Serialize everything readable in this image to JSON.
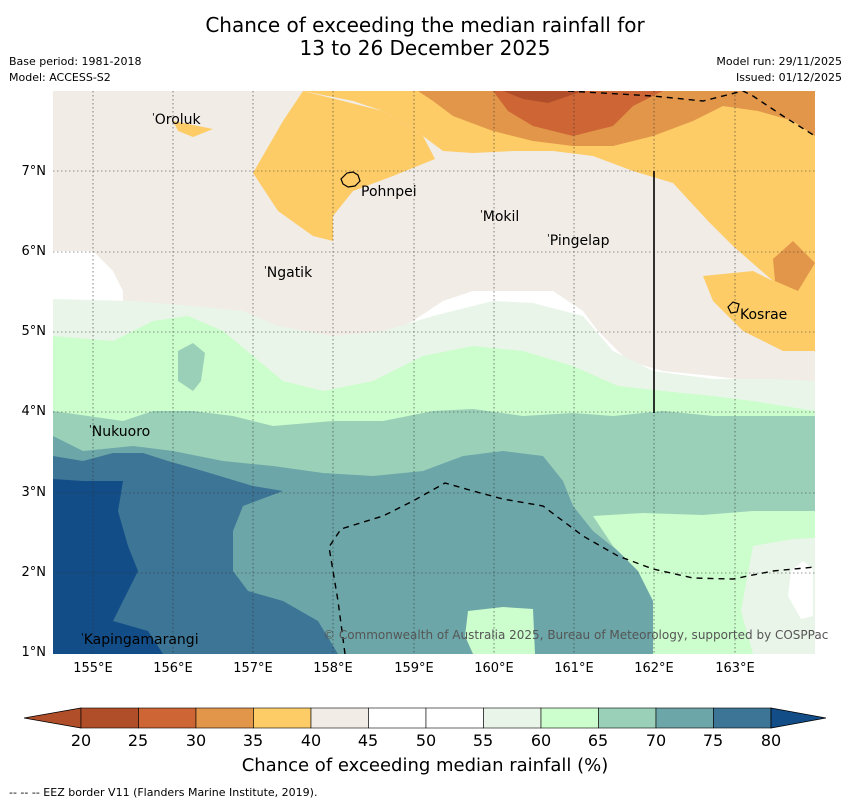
{
  "title": {
    "line1": "Chance of exceeding the median rainfall for",
    "line2": "13 to 26 December 2025"
  },
  "meta": {
    "base_period": "Base period: 1981-2018",
    "model": "Model: ACCESS-S2",
    "model_run": "Model run: 29/11/2025",
    "issued": "Issued: 01/12/2025"
  },
  "axes": {
    "lat_labels": [
      "7°N",
      "6°N",
      "5°N",
      "4°N",
      "3°N",
      "2°N",
      "1°N"
    ],
    "lon_labels": [
      "155°E",
      "156°E",
      "157°E",
      "158°E",
      "159°E",
      "160°E",
      "161°E",
      "162°E",
      "163°E"
    ]
  },
  "places": {
    "oroluk": "Oroluk",
    "pohnpei": "Pohnpei",
    "mokil": "Mokil",
    "pingelap": "Pingelap",
    "ngatik": "Ngatik",
    "kosrae": "Kosrae",
    "nukuoro": "Nukuoro",
    "kapingamarangi": "Kapingamarangi"
  },
  "copyright": "© Commonwealth of Australia 2025, Bureau of Meteorology, supported by COSPPac",
  "colorbar": {
    "title": "Chance of exceeding median rainfall (%)",
    "labels": [
      "20",
      "25",
      "30",
      "35",
      "40",
      "45",
      "50",
      "55",
      "60",
      "65",
      "70",
      "75",
      "80"
    ],
    "colors": {
      "lt20": "#b14e2a",
      "b20_25": "#b14e2a",
      "b25_30": "#cd6535",
      "b30_35": "#e2964a",
      "b35_40": "#fdcc67",
      "b40_45": "#f1ece6",
      "b45_55": "#ffffff",
      "b55_60": "#eaf5e9",
      "b60_65": "#ccfdcc",
      "b65_70": "#9ad0b8",
      "b70_75": "#6ca6a8",
      "b75_80": "#3d7596",
      "gt80": "#134d87"
    }
  },
  "footnote": "--  --  -- EEZ border V11 (Flanders Marine Institute, 2019)."
}
